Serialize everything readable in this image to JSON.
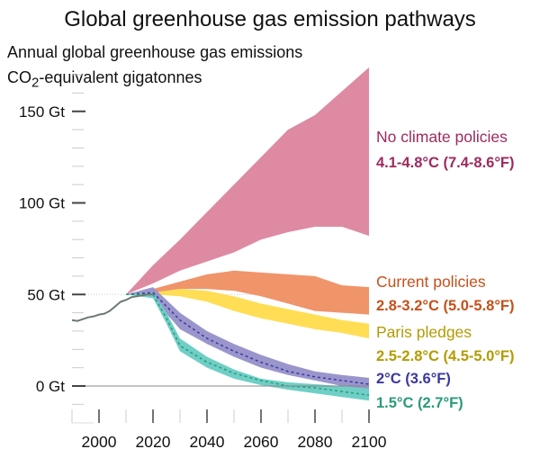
{
  "chart_data": {
    "type": "area",
    "title": "Global greenhouse gas emission pathways",
    "subtitle_line1": "Annual global greenhouse gas emissions",
    "subtitle_line2_pre": "CO",
    "subtitle_line2_sub": "2",
    "subtitle_line2_post": "-equivalent gigatonnes",
    "xlim": [
      1990,
      2100
    ],
    "ylim": [
      -10,
      175
    ],
    "x_ticks": [
      "2000",
      "2020",
      "2040",
      "2060",
      "2080",
      "2100"
    ],
    "x_tick_values": [
      2000,
      2020,
      2040,
      2060,
      2080,
      2100
    ],
    "y_ticks": [
      "0 Gt",
      "50 Gt",
      "100 Gt",
      "150 Gt"
    ],
    "y_tick_values": [
      0,
      50,
      100,
      150
    ],
    "historical": {
      "x": [
        1990,
        1992,
        1994,
        1996,
        1998,
        2000,
        2002,
        2004,
        2006,
        2008,
        2010,
        2012,
        2014,
        2016,
        2018,
        2020
      ],
      "y": [
        36,
        35.5,
        36.5,
        37.5,
        38,
        39,
        39.5,
        41,
        43.5,
        46,
        47,
        48.5,
        49,
        49.5,
        50,
        50
      ]
    },
    "series": [
      {
        "name": "No climate policies",
        "range": "4.1-4.8°C (7.4-8.6°F)",
        "color": "#de8aa3",
        "label_color": "#9e2a5e",
        "x": [
          2010,
          2020,
          2030,
          2040,
          2050,
          2060,
          2070,
          2080,
          2090,
          2100
        ],
        "upper": [
          50,
          66,
          80,
          95,
          110,
          125,
          140,
          148,
          161,
          174
        ],
        "lower": [
          50,
          56,
          63,
          68,
          73,
          80,
          84,
          87,
          87,
          82
        ]
      },
      {
        "name": "Current policies",
        "range": "2.8-3.2°C (5.0-5.8°F)",
        "color": "#f0946a",
        "label_color": "#c5501a",
        "x": [
          2010,
          2020,
          2030,
          2040,
          2050,
          2060,
          2070,
          2080,
          2090,
          2100
        ],
        "upper": [
          50,
          53,
          57,
          61,
          63,
          62,
          61,
          60,
          55,
          54
        ],
        "lower": [
          50,
          51,
          53,
          53,
          52,
          49,
          45,
          41,
          40,
          39
        ]
      },
      {
        "name": "Paris pledges",
        "range": "2.5-2.8°C (4.5-5.0°F)",
        "color": "#ffde55",
        "label_color": "#b39b00",
        "x": [
          2010,
          2020,
          2030,
          2040,
          2050,
          2060,
          2070,
          2080,
          2090,
          2100
        ],
        "upper": [
          50,
          51,
          53,
          52,
          49,
          45,
          42,
          39,
          36,
          34
        ],
        "lower": [
          50,
          50,
          49,
          46,
          41,
          37,
          34,
          31,
          29,
          26
        ]
      },
      {
        "name": "2°C (3.6°F)",
        "range": "",
        "color": "#9a96cc",
        "label_color": "#3b38a0",
        "x": [
          2010,
          2020,
          2030,
          2040,
          2050,
          2060,
          2070,
          2080,
          2090,
          2100
        ],
        "upper": [
          50,
          54,
          40,
          30,
          23,
          17,
          12,
          8,
          6,
          4.5
        ],
        "lower": [
          50,
          48,
          31,
          23,
          16,
          10,
          6,
          3,
          0,
          -3
        ],
        "median": [
          50,
          51,
          36,
          26,
          19,
          13,
          8,
          5,
          3,
          1
        ]
      },
      {
        "name": "1.5°C (2.7°F)",
        "range": "",
        "color": "#6fcfc6",
        "label_color": "#2a9a7a",
        "x": [
          2010,
          2020,
          2025,
          2030,
          2040,
          2050,
          2060,
          2070,
          2080,
          2090,
          2100
        ],
        "upper": [
          50,
          51,
          40,
          26,
          16,
          9,
          4,
          2,
          1,
          0,
          -1.5
        ],
        "lower": [
          50,
          48,
          34,
          19,
          10,
          4,
          0.5,
          -2,
          -4,
          -6,
          -8
        ],
        "median": [
          50,
          50,
          37,
          22,
          13,
          7,
          3,
          0,
          -1,
          -3,
          -5
        ]
      }
    ]
  }
}
